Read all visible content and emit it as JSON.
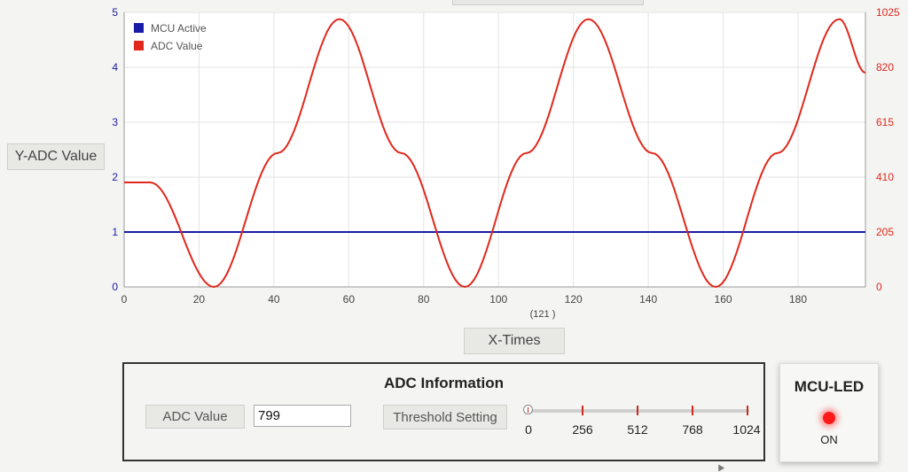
{
  "chart_data": {
    "type": "line",
    "x_ticks": [
      "0",
      "20",
      "40",
      "60",
      "80",
      "100",
      "120",
      "140",
      "160",
      "180"
    ],
    "xlim": [
      0,
      198
    ],
    "y_left_ticks": [
      "0",
      "1",
      "2",
      "3",
      "4",
      "5"
    ],
    "ylim_left": [
      0,
      5
    ],
    "y_right_ticks": [
      "0",
      "205",
      "410",
      "615",
      "820",
      "1025"
    ],
    "ylim_right": [
      0,
      1025
    ],
    "x_annotation": "(121 )",
    "grid": true,
    "legend_position": "top-left",
    "series": [
      {
        "name": "MCU Active",
        "axis": "left",
        "color": "#1a1aa8",
        "x": [
          0,
          198
        ],
        "y": [
          1,
          1
        ]
      },
      {
        "name": "ADC Value",
        "axis": "right",
        "color": "#e0281c",
        "x": [
          0,
          7,
          24,
          41,
          57.5,
          74,
          91,
          107.5,
          124,
          141,
          158,
          174.5,
          191,
          198
        ],
        "y": [
          390,
          390,
          0,
          500,
          1000,
          500,
          0,
          500,
          1000,
          500,
          0,
          500,
          1000,
          800
        ]
      }
    ]
  },
  "y_axis_label": "Y-ADC Value",
  "x_axis_label": "X-Times",
  "adc_panel": {
    "title": "ADC Information",
    "adc_label": "ADC Value",
    "adc_value": "799",
    "threshold_label": "Threshold Setting",
    "slider_value": 0,
    "slider_ticks": [
      "0",
      "256",
      "512",
      "768",
      "1024"
    ]
  },
  "led_panel": {
    "title": "MCU-LED",
    "state": "ON",
    "led_color": "#ff1a1a"
  }
}
